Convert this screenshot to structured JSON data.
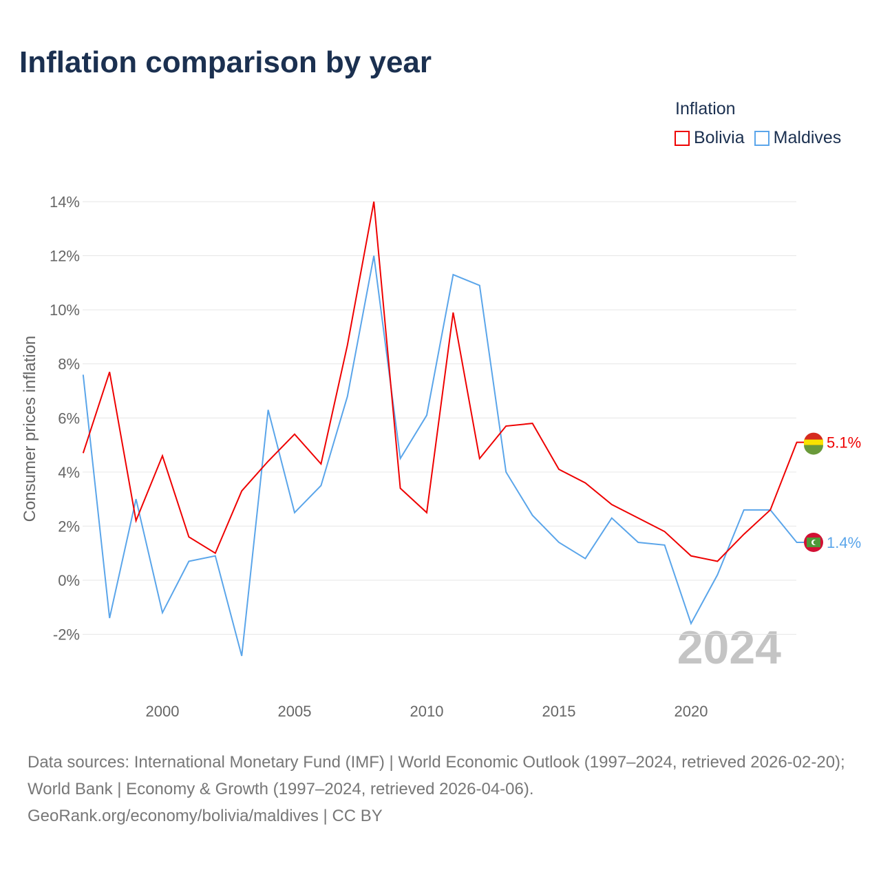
{
  "title": "Inflation comparison by year",
  "legend": {
    "title": "Inflation",
    "items": [
      "Bolivia",
      "Maldives"
    ]
  },
  "year_label": "2024",
  "end_labels": {
    "bolivia": "5.1%",
    "maldives": "1.4%"
  },
  "footer": {
    "line1": "Data sources: International Monetary Fund (IMF) | World Economic Outlook (1997–2024, retrieved 2026-02-20); World Bank | Economy & Growth (1997–2024, retrieved 2026-04-06).",
    "line2": "GeoRank.org/economy/bolivia/maldives | CC BY"
  },
  "chart_data": {
    "type": "line",
    "title": "Inflation comparison by year",
    "xlabel": "",
    "ylabel": "Consumer prices inflation",
    "xlim": [
      1997,
      2024
    ],
    "ylim": [
      -3.5,
      15
    ],
    "yticks": [
      -2,
      0,
      2,
      4,
      6,
      8,
      10,
      12,
      14
    ],
    "ytick_labels": [
      "-2%",
      "0%",
      "2%",
      "4%",
      "6%",
      "8%",
      "10%",
      "12%",
      "14%"
    ],
    "xticks": [
      2000,
      2005,
      2010,
      2015,
      2020
    ],
    "xtick_labels": [
      "2000",
      "2005",
      "2010",
      "2015",
      "2020"
    ],
    "grid": true,
    "legend_position": "top-right",
    "x": [
      1997,
      1998,
      1999,
      2000,
      2001,
      2002,
      2003,
      2004,
      2005,
      2006,
      2007,
      2008,
      2009,
      2010,
      2011,
      2012,
      2013,
      2014,
      2015,
      2016,
      2017,
      2018,
      2019,
      2020,
      2021,
      2022,
      2023,
      2024
    ],
    "series": [
      {
        "name": "Bolivia",
        "color": "#ee0000",
        "values": [
          4.7,
          7.7,
          2.2,
          4.6,
          1.6,
          1.0,
          3.3,
          4.4,
          5.4,
          4.3,
          8.7,
          14.0,
          3.4,
          2.5,
          9.9,
          4.5,
          5.7,
          5.8,
          4.1,
          3.6,
          2.8,
          2.3,
          1.8,
          0.9,
          0.7,
          1.7,
          2.6,
          5.1
        ]
      },
      {
        "name": "Maldives",
        "color": "#5aa5ea",
        "values": [
          7.6,
          -1.4,
          3.0,
          -1.2,
          0.7,
          0.9,
          -2.8,
          6.3,
          2.5,
          3.5,
          6.8,
          12.0,
          4.5,
          6.1,
          11.3,
          10.9,
          4.0,
          2.4,
          1.4,
          0.8,
          2.3,
          1.4,
          1.3,
          -1.6,
          0.2,
          2.6,
          2.6,
          1.4
        ]
      }
    ]
  }
}
